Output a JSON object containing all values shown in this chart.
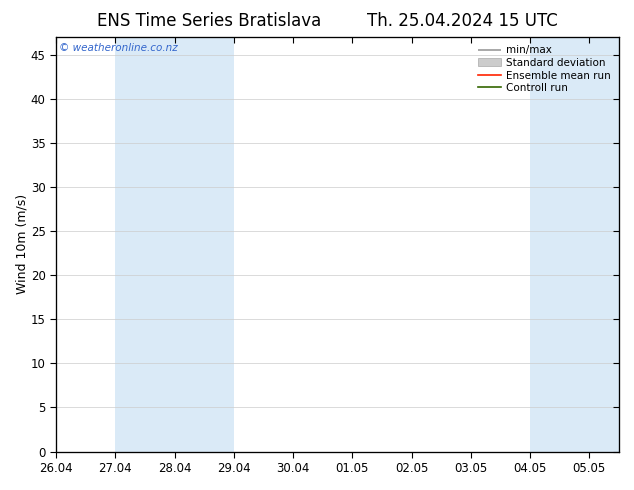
{
  "title_left": "ENS Time Series Bratislava",
  "title_right": "Th. 25.04.2024 15 UTC",
  "ylabel": "Wind 10m (m/s)",
  "watermark": "© weatheronline.co.nz",
  "x_tick_labels": [
    "26.04",
    "27.04",
    "28.04",
    "29.04",
    "30.04",
    "01.05",
    "02.05",
    "03.05",
    "04.05",
    "05.05"
  ],
  "x_tick_positions": [
    0,
    1,
    2,
    3,
    4,
    5,
    6,
    7,
    8,
    9
  ],
  "ylim": [
    0,
    47
  ],
  "yticks": [
    0,
    5,
    10,
    15,
    20,
    25,
    30,
    35,
    40,
    45
  ],
  "shaded_bands": [
    {
      "x_start": 1.0,
      "x_end": 3.0,
      "color": "#daeaf7"
    },
    {
      "x_start": 8.0,
      "x_end": 9.5,
      "color": "#daeaf7"
    }
  ],
  "xlim": [
    0,
    9.5
  ],
  "legend_items": [
    {
      "label": "min/max",
      "type": "errorbar",
      "color": "#aaaaaa"
    },
    {
      "label": "Standard deviation",
      "type": "fill",
      "color": "#cccccc"
    },
    {
      "label": "Ensemble mean run",
      "type": "line",
      "color": "#ff0000"
    },
    {
      "label": "Controll run",
      "type": "line",
      "color": "#008000"
    }
  ],
  "bg_color": "#ffffff",
  "spine_color": "#000000",
  "grid_color": "#cccccc",
  "title_fontsize": 12,
  "tick_fontsize": 8.5,
  "ylabel_fontsize": 9,
  "watermark_color": "#3366cc",
  "watermark_fontsize": 7.5
}
